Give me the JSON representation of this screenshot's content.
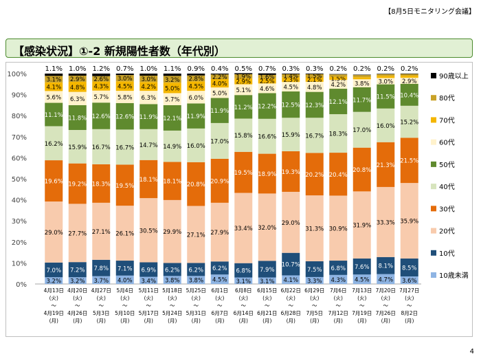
{
  "header": {
    "meeting_tag": "【8月5日モニタリング会議】"
  },
  "title": "【感染状況】①-2 新規陽性者数（年代別）",
  "page_number": "4",
  "chart_data": {
    "type": "bar",
    "stacked": true,
    "ylim": [
      0,
      100
    ],
    "yticks": [
      "0%",
      "10%",
      "20%",
      "30%",
      "40%",
      "50%",
      "60%",
      "70%",
      "80%",
      "90%",
      "100%"
    ],
    "grid": false,
    "legend_position": "right",
    "categories": [
      [
        "4月13日",
        "(火)",
        "～",
        "4月19日",
        "(月)"
      ],
      [
        "4月20日",
        "(火)",
        "～",
        "4月26日",
        "(月)"
      ],
      [
        "4月27日",
        "(火)",
        "～",
        "5月3日",
        "(月)"
      ],
      [
        "5月4日",
        "(火)",
        "～",
        "5月10日",
        "(月)"
      ],
      [
        "5月11日",
        "(火)",
        "～",
        "5月17日",
        "(月)"
      ],
      [
        "5月18日",
        "(火)",
        "～",
        "5月24日",
        "(月)"
      ],
      [
        "5月25日",
        "(火)",
        "～",
        "5月31日",
        "(月)"
      ],
      [
        "6月1日",
        "(火)",
        "～",
        "6月7日",
        "(月)"
      ],
      [
        "6月8日",
        "(火)",
        "～",
        "6月14日",
        "(月)"
      ],
      [
        "6月15日",
        "(火)",
        "～",
        "6月21日",
        "(月)"
      ],
      [
        "6月22日",
        "(火)",
        "～",
        "6月28日",
        "(月)"
      ],
      [
        "6月29日",
        "(火)",
        "～",
        "7月5日",
        "(月)"
      ],
      [
        "7月6日",
        "(火)",
        "～",
        "7月12日",
        "(月)"
      ],
      [
        "7月13日",
        "(火)",
        "～",
        "7月19日",
        "(月)"
      ],
      [
        "7月20日",
        "(火)",
        "～",
        "7月26日",
        "(月)"
      ],
      [
        "7月27日",
        "(火)",
        "～",
        "8月2日",
        "(月)"
      ]
    ],
    "series": [
      {
        "name": "10歳未満",
        "color": "#8eb4e3",
        "values": [
          3.2,
          3.2,
          3.7,
          4.0,
          3.4,
          3.8,
          3.8,
          4.5,
          3.1,
          3.1,
          4.1,
          3.3,
          4.3,
          4.5,
          4.7,
          3.6
        ]
      },
      {
        "name": "10代",
        "color": "#1f4e79",
        "values": [
          7.0,
          7.2,
          7.8,
          7.1,
          6.9,
          6.2,
          6.2,
          6.2,
          6.8,
          7.9,
          10.7,
          7.5,
          6.8,
          7.6,
          8.1,
          8.5
        ]
      },
      {
        "name": "20代",
        "color": "#f8cbad",
        "values": [
          29.0,
          27.7,
          27.1,
          26.1,
          30.5,
          29.9,
          27.1,
          27.9,
          33.4,
          32.0,
          29.0,
          31.3,
          30.9,
          31.9,
          33.3,
          35.9
        ]
      },
      {
        "name": "30代",
        "color": "#e46c0a",
        "values": [
          19.6,
          19.2,
          18.3,
          19.5,
          18.1,
          18.1,
          20.8,
          20.9,
          19.5,
          18.9,
          19.3,
          20.2,
          20.4,
          20.8,
          21.3,
          21.5
        ]
      },
      {
        "name": "40代",
        "color": "#d7e4bd",
        "values": [
          16.2,
          15.9,
          16.7,
          16.7,
          14.7,
          14.9,
          16.0,
          17.0,
          15.8,
          16.6,
          15.9,
          16.7,
          18.3,
          17.0,
          16.0,
          15.2
        ]
      },
      {
        "name": "50代",
        "color": "#5f8a2e",
        "values": [
          11.1,
          11.8,
          12.6,
          12.6,
          11.9,
          12.1,
          11.9,
          11.9,
          11.2,
          12.2,
          12.5,
          12.3,
          12.1,
          11.7,
          11.5,
          10.4
        ]
      },
      {
        "name": "60代",
        "color": "#fff2cc",
        "values": [
          5.6,
          6.3,
          5.7,
          5.8,
          6.3,
          5.7,
          6.0,
          5.0,
          5.1,
          4.6,
          4.5,
          4.8,
          4.2,
          3.8,
          3.0,
          2.9
        ]
      },
      {
        "name": "70代",
        "color": "#f4b600",
        "values": [
          4.1,
          4.8,
          4.3,
          4.5,
          4.2,
          5.0,
          4.5,
          4.0,
          2.9,
          2.5,
          2.3,
          2.1,
          1.5,
          1.0,
          1.0,
          1.0
        ]
      },
      {
        "name": "80代",
        "color": "#c9a227",
        "values": [
          3.1,
          2.9,
          2.6,
          3.0,
          3.0,
          3.2,
          2.8,
          2.2,
          1.9,
          1.6,
          1.4,
          1.5,
          1.1,
          1.0,
          0.8,
          0.8
        ]
      },
      {
        "name": "90歳以上",
        "color": "#000000",
        "values": [
          1.1,
          1.0,
          1.2,
          0.7,
          1.0,
          1.1,
          0.9,
          0.4,
          0.5,
          0.7,
          0.3,
          0.3,
          0.2,
          0.2,
          0.2,
          0.2
        ]
      }
    ],
    "label_visible": [
      [
        true,
        true,
        true,
        true,
        true,
        true,
        true,
        true,
        true,
        true,
        true,
        true,
        true,
        true,
        true,
        true
      ],
      [
        true,
        true,
        true,
        true,
        true,
        true,
        true,
        true,
        true,
        true,
        true,
        true,
        true,
        true,
        true,
        true
      ],
      [
        true,
        true,
        true,
        true,
        true,
        true,
        true,
        true,
        true,
        true,
        true,
        true,
        true,
        true,
        true,
        true
      ],
      [
        true,
        true,
        true,
        true,
        true,
        true,
        true,
        true,
        true,
        true,
        true,
        true,
        true,
        true,
        true,
        true
      ],
      [
        true,
        true,
        true,
        true,
        true,
        true,
        true,
        true,
        true,
        true,
        true,
        true,
        true,
        true,
        true,
        true
      ],
      [
        true,
        true,
        true,
        true,
        true,
        true,
        true,
        true,
        true,
        true,
        true,
        true,
        true,
        true,
        true,
        true
      ],
      [
        true,
        true,
        true,
        true,
        true,
        true,
        true,
        true,
        true,
        true,
        true,
        true,
        true,
        true,
        true,
        true
      ],
      [
        true,
        true,
        true,
        true,
        true,
        true,
        true,
        true,
        true,
        true,
        true,
        true,
        true,
        false,
        false,
        false
      ],
      [
        true,
        true,
        true,
        true,
        true,
        true,
        true,
        true,
        true,
        true,
        true,
        true,
        false,
        false,
        false,
        false
      ],
      [
        true,
        true,
        true,
        true,
        true,
        true,
        true,
        true,
        true,
        true,
        true,
        true,
        true,
        true,
        true,
        true
      ]
    ]
  }
}
